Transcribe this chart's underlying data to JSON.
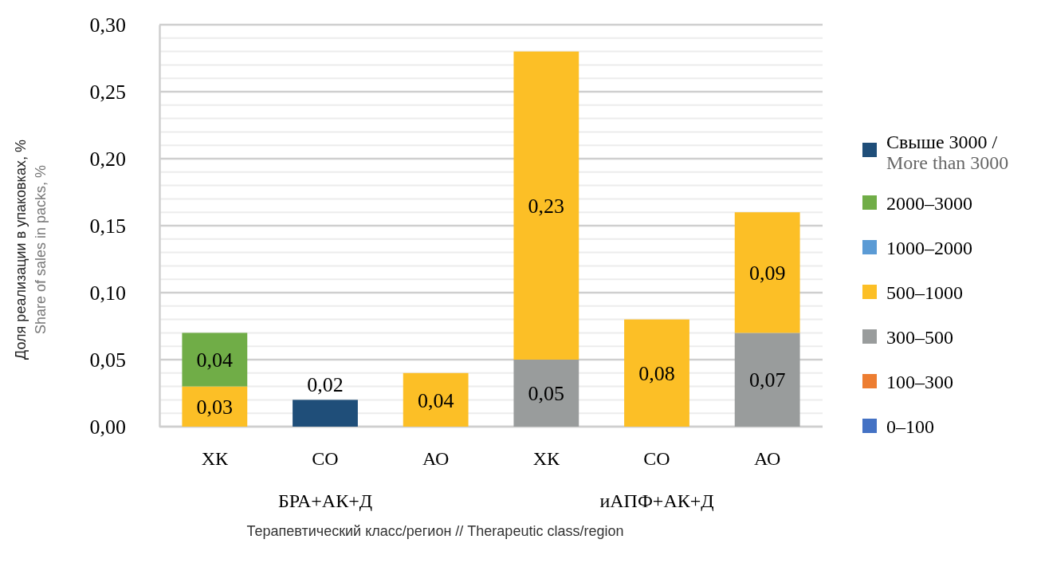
{
  "chart_data": {
    "type": "bar",
    "stacked": true,
    "categories": [
      "ХК",
      "СО",
      "АО",
      "ХК",
      "СО",
      "АО"
    ],
    "annotations": [
      "БРА+АК+Д",
      "иАПФ+АК+Д"
    ],
    "xlabel": "Терапевтический класс/регион // Therapeutic class/region",
    "ylabel": "Доля реализации в упаковках, %\nShare of sales in packs, %",
    "ylim": [
      0,
      0.3
    ],
    "yticks": [
      {
        "value": 0,
        "label": "0,00"
      },
      {
        "value": 0.01,
        "label": null
      },
      {
        "value": 0.02,
        "label": null
      },
      {
        "value": 0.03,
        "label": null
      },
      {
        "value": 0.04,
        "label": null
      },
      {
        "value": 0.05,
        "label": "0,05"
      },
      {
        "value": 0.06,
        "label": null
      },
      {
        "value": 0.07,
        "label": null
      },
      {
        "value": 0.08,
        "label": null
      },
      {
        "value": 0.09,
        "label": null
      },
      {
        "value": 0.1,
        "label": "0,10"
      },
      {
        "value": 0.11,
        "label": null
      },
      {
        "value": 0.12,
        "label": null
      },
      {
        "value": 0.13,
        "label": null
      },
      {
        "value": 0.14,
        "label": null
      },
      {
        "value": 0.15,
        "label": "0,15"
      },
      {
        "value": 0.16,
        "label": null
      },
      {
        "value": 0.17,
        "label": null
      },
      {
        "value": 0.18,
        "label": null
      },
      {
        "value": 0.19,
        "label": null
      },
      {
        "value": 0.2,
        "label": "0,20"
      },
      {
        "value": 0.21,
        "label": null
      },
      {
        "value": 0.22,
        "label": null
      },
      {
        "value": 0.23,
        "label": null
      },
      {
        "value": 0.24,
        "label": null
      },
      {
        "value": 0.25,
        "label": "0,25"
      },
      {
        "value": 0.26,
        "label": null
      },
      {
        "value": 0.27,
        "label": null
      },
      {
        "value": 0.28,
        "label": null
      },
      {
        "value": 0.29,
        "label": null
      },
      {
        "value": 0.3,
        "label": "0,30"
      }
    ],
    "grid": "y",
    "legend": "right",
    "series": [
      {
        "name": "0–100",
        "color": "#4472c4",
        "values": [
          null,
          null,
          null,
          null,
          null,
          null
        ]
      },
      {
        "name": "100–300",
        "color": "#ed7d31",
        "values": [
          null,
          null,
          null,
          null,
          null,
          null
        ]
      },
      {
        "name": "300–500",
        "color": "#999c9c",
        "values": [
          null,
          null,
          null,
          0.05,
          null,
          0.07
        ],
        "value_labels": [
          null,
          null,
          null,
          "0,05",
          null,
          "0,07"
        ]
      },
      {
        "name": "500–1000",
        "color": "#fcbf26",
        "values": [
          0.03,
          null,
          0.04,
          0.23,
          0.08,
          0.09
        ],
        "value_labels": [
          "0,03",
          null,
          "0,04",
          "0,23",
          "0,08",
          "0,09"
        ]
      },
      {
        "name": "1000–2000",
        "color": "#5b9bd5",
        "values": [
          null,
          null,
          null,
          null,
          null,
          null
        ]
      },
      {
        "name": "2000–3000",
        "color": "#70ad47",
        "values": [
          0.04,
          null,
          null,
          null,
          null,
          null
        ],
        "value_labels": [
          "0,04",
          null,
          null,
          null,
          null,
          null
        ]
      },
      {
        "name": "Свыше 3000 /\nMore than 3000",
        "color": "#1f4e79",
        "values": [
          null,
          0.02,
          null,
          null,
          null,
          null
        ],
        "value_labels": [
          null,
          "0,02",
          null,
          null,
          null,
          null
        ]
      }
    ]
  }
}
